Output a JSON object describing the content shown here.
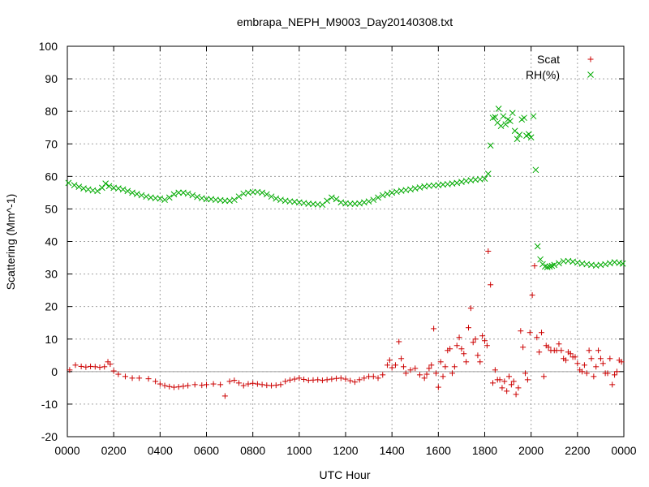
{
  "chart_data": {
    "type": "scatter",
    "title": "embrapa_NEPH_M9003_Day20140308.txt",
    "xlabel": "UTC Hour",
    "ylabel": "Scattering (Mm^-1)",
    "xlim": [
      0,
      24
    ],
    "ylim": [
      -20,
      100
    ],
    "grid": true,
    "legend_position": "top-right",
    "x_tick_labels": [
      "0000",
      "0200",
      "0400",
      "0600",
      "0800",
      "1000",
      "1200",
      "1400",
      "1600",
      "1800",
      "2000",
      "2200",
      "0000"
    ],
    "y_tick_labels": [
      "-20",
      "-10",
      "0",
      "10",
      "20",
      "30",
      "40",
      "50",
      "60",
      "70",
      "80",
      "90",
      "100"
    ],
    "series": [
      {
        "name": "Scat",
        "marker": "plus",
        "color": "#cc0000",
        "points": [
          [
            0.1,
            0.5
          ],
          [
            0.35,
            2.0
          ],
          [
            0.6,
            1.6
          ],
          [
            0.8,
            1.4
          ],
          [
            1.0,
            1.6
          ],
          [
            1.2,
            1.5
          ],
          [
            1.4,
            1.3
          ],
          [
            1.6,
            1.5
          ],
          [
            1.75,
            3.0
          ],
          [
            1.85,
            2.3
          ],
          [
            2.0,
            0.2
          ],
          [
            2.2,
            -0.8
          ],
          [
            2.5,
            -1.5
          ],
          [
            2.8,
            -2.0
          ],
          [
            3.1,
            -2.0
          ],
          [
            3.5,
            -2.2
          ],
          [
            3.8,
            -3.0
          ],
          [
            4.0,
            -3.8
          ],
          [
            4.2,
            -4.3
          ],
          [
            4.4,
            -4.6
          ],
          [
            4.6,
            -4.8
          ],
          [
            4.8,
            -4.7
          ],
          [
            5.0,
            -4.5
          ],
          [
            5.2,
            -4.3
          ],
          [
            5.5,
            -4.0
          ],
          [
            5.8,
            -4.2
          ],
          [
            6.0,
            -4.0
          ],
          [
            6.3,
            -3.8
          ],
          [
            6.6,
            -4.0
          ],
          [
            6.8,
            -7.5
          ],
          [
            7.0,
            -3.0
          ],
          [
            7.2,
            -2.7
          ],
          [
            7.4,
            -3.5
          ],
          [
            7.6,
            -4.3
          ],
          [
            7.8,
            -3.8
          ],
          [
            8.0,
            -3.6
          ],
          [
            8.2,
            -3.8
          ],
          [
            8.4,
            -4.0
          ],
          [
            8.6,
            -4.2
          ],
          [
            8.8,
            -4.3
          ],
          [
            9.0,
            -4.2
          ],
          [
            9.2,
            -4.0
          ],
          [
            9.4,
            -3.0
          ],
          [
            9.6,
            -2.6
          ],
          [
            9.8,
            -2.3
          ],
          [
            10.0,
            -2.0
          ],
          [
            10.2,
            -2.4
          ],
          [
            10.4,
            -2.7
          ],
          [
            10.6,
            -2.6
          ],
          [
            10.8,
            -2.5
          ],
          [
            11.0,
            -2.7
          ],
          [
            11.2,
            -2.5
          ],
          [
            11.4,
            -2.3
          ],
          [
            11.6,
            -2.1
          ],
          [
            11.8,
            -2.0
          ],
          [
            12.0,
            -2.3
          ],
          [
            12.2,
            -2.8
          ],
          [
            12.4,
            -3.2
          ],
          [
            12.6,
            -2.5
          ],
          [
            12.8,
            -2.0
          ],
          [
            13.0,
            -1.5
          ],
          [
            13.2,
            -1.5
          ],
          [
            13.4,
            -2.0
          ],
          [
            13.6,
            -1.0
          ],
          [
            13.8,
            2.0
          ],
          [
            13.9,
            3.5
          ],
          [
            14.0,
            1.2
          ],
          [
            14.15,
            2.0
          ],
          [
            14.3,
            9.2
          ],
          [
            14.4,
            4.0
          ],
          [
            14.5,
            1.5
          ],
          [
            14.6,
            -0.5
          ],
          [
            14.8,
            0.5
          ],
          [
            15.0,
            1.0
          ],
          [
            15.2,
            -1.0
          ],
          [
            15.4,
            -2.0
          ],
          [
            15.5,
            -0.8
          ],
          [
            15.6,
            1.0
          ],
          [
            15.7,
            2.0
          ],
          [
            15.8,
            13.2
          ],
          [
            15.9,
            -0.5
          ],
          [
            16.0,
            -4.8
          ],
          [
            16.1,
            3.0
          ],
          [
            16.2,
            -1.5
          ],
          [
            16.3,
            1.5
          ],
          [
            16.4,
            6.5
          ],
          [
            16.5,
            7.0
          ],
          [
            16.6,
            -0.5
          ],
          [
            16.7,
            1.5
          ],
          [
            16.8,
            8.0
          ],
          [
            16.9,
            10.5
          ],
          [
            17.0,
            7.0
          ],
          [
            17.1,
            5.5
          ],
          [
            17.2,
            3.0
          ],
          [
            17.3,
            13.5
          ],
          [
            17.4,
            19.5
          ],
          [
            17.5,
            9.0
          ],
          [
            17.6,
            10.0
          ],
          [
            17.7,
            5.0
          ],
          [
            17.8,
            3.0
          ],
          [
            17.9,
            11.0
          ],
          [
            18.0,
            9.5
          ],
          [
            18.1,
            8.0
          ],
          [
            18.15,
            37.0
          ],
          [
            18.25,
            26.7
          ],
          [
            18.35,
            -3.5
          ],
          [
            18.45,
            0.5
          ],
          [
            18.55,
            -2.5
          ],
          [
            18.65,
            -2.5
          ],
          [
            18.75,
            -5.0
          ],
          [
            18.85,
            -3.0
          ],
          [
            18.95,
            -6.0
          ],
          [
            19.05,
            -1.5
          ],
          [
            19.15,
            -4.0
          ],
          [
            19.25,
            -3.0
          ],
          [
            19.35,
            -7.0
          ],
          [
            19.45,
            -5.0
          ],
          [
            19.55,
            12.5
          ],
          [
            19.65,
            7.5
          ],
          [
            19.75,
            -0.5
          ],
          [
            19.85,
            -2.5
          ],
          [
            19.95,
            12.0
          ],
          [
            20.05,
            23.5
          ],
          [
            20.15,
            32.5
          ],
          [
            20.25,
            10.5
          ],
          [
            20.35,
            6.0
          ],
          [
            20.45,
            12.0
          ],
          [
            20.55,
            -1.5
          ],
          [
            20.65,
            8.0
          ],
          [
            20.75,
            7.5
          ],
          [
            20.85,
            6.5
          ],
          [
            21.0,
            6.5
          ],
          [
            21.1,
            6.5
          ],
          [
            21.2,
            8.5
          ],
          [
            21.3,
            6.5
          ],
          [
            21.4,
            4.0
          ],
          [
            21.5,
            3.5
          ],
          [
            21.6,
            6.0
          ],
          [
            21.7,
            5.5
          ],
          [
            21.8,
            4.5
          ],
          [
            21.9,
            4.5
          ],
          [
            22.0,
            2.5
          ],
          [
            22.1,
            0.5
          ],
          [
            22.2,
            0.0
          ],
          [
            22.3,
            2.0
          ],
          [
            22.4,
            -0.5
          ],
          [
            22.5,
            6.5
          ],
          [
            22.6,
            4.0
          ],
          [
            22.7,
            -1.5
          ],
          [
            22.8,
            1.5
          ],
          [
            22.9,
            6.5
          ],
          [
            23.0,
            4.0
          ],
          [
            23.1,
            2.5
          ],
          [
            23.2,
            -0.5
          ],
          [
            23.3,
            -0.5
          ],
          [
            23.4,
            4.0
          ],
          [
            23.5,
            -4.0
          ],
          [
            23.6,
            -1.0
          ],
          [
            23.7,
            0.0
          ],
          [
            23.8,
            3.5
          ],
          [
            23.9,
            3.0
          ]
        ]
      },
      {
        "name": "RH(%)",
        "marker": "cross",
        "color": "#00aa00",
        "points": [
          [
            0.05,
            58.0
          ],
          [
            0.3,
            57.3
          ],
          [
            0.5,
            56.8
          ],
          [
            0.7,
            56.3
          ],
          [
            0.9,
            56.0
          ],
          [
            1.1,
            55.7
          ],
          [
            1.3,
            55.5
          ],
          [
            1.5,
            56.5
          ],
          [
            1.65,
            57.8
          ],
          [
            1.8,
            57.0
          ],
          [
            2.0,
            56.5
          ],
          [
            2.2,
            56.3
          ],
          [
            2.4,
            56.0
          ],
          [
            2.6,
            55.5
          ],
          [
            2.8,
            55.0
          ],
          [
            3.0,
            54.6
          ],
          [
            3.2,
            54.2
          ],
          [
            3.4,
            53.8
          ],
          [
            3.6,
            53.5
          ],
          [
            3.8,
            53.3
          ],
          [
            4.0,
            53.2
          ],
          [
            4.2,
            52.8
          ],
          [
            4.4,
            53.5
          ],
          [
            4.6,
            54.5
          ],
          [
            4.8,
            55.0
          ],
          [
            5.0,
            55.0
          ],
          [
            5.2,
            54.7
          ],
          [
            5.4,
            54.2
          ],
          [
            5.6,
            53.7
          ],
          [
            5.8,
            53.3
          ],
          [
            6.0,
            53.0
          ],
          [
            6.2,
            53.0
          ],
          [
            6.4,
            52.8
          ],
          [
            6.6,
            52.7
          ],
          [
            6.8,
            52.5
          ],
          [
            7.0,
            52.5
          ],
          [
            7.2,
            52.8
          ],
          [
            7.4,
            53.8
          ],
          [
            7.6,
            54.7
          ],
          [
            7.8,
            55.0
          ],
          [
            8.0,
            55.2
          ],
          [
            8.2,
            55.2
          ],
          [
            8.4,
            55.0
          ],
          [
            8.6,
            54.5
          ],
          [
            8.8,
            53.8
          ],
          [
            9.0,
            53.2
          ],
          [
            9.2,
            52.8
          ],
          [
            9.4,
            52.5
          ],
          [
            9.6,
            52.3
          ],
          [
            9.8,
            52.2
          ],
          [
            10.0,
            52.0
          ],
          [
            10.2,
            51.8
          ],
          [
            10.4,
            51.6
          ],
          [
            10.6,
            51.5
          ],
          [
            10.8,
            51.4
          ],
          [
            11.0,
            51.3
          ],
          [
            11.2,
            52.5
          ],
          [
            11.4,
            53.5
          ],
          [
            11.6,
            53.0
          ],
          [
            11.8,
            52.0
          ],
          [
            12.0,
            51.7
          ],
          [
            12.2,
            51.6
          ],
          [
            12.4,
            51.6
          ],
          [
            12.6,
            51.7
          ],
          [
            12.8,
            52.0
          ],
          [
            13.0,
            52.3
          ],
          [
            13.2,
            52.8
          ],
          [
            13.4,
            53.5
          ],
          [
            13.6,
            54.2
          ],
          [
            13.8,
            54.6
          ],
          [
            14.0,
            55.0
          ],
          [
            14.2,
            55.3
          ],
          [
            14.4,
            55.6
          ],
          [
            14.6,
            55.8
          ],
          [
            14.8,
            56.0
          ],
          [
            15.0,
            56.3
          ],
          [
            15.2,
            56.6
          ],
          [
            15.4,
            56.9
          ],
          [
            15.6,
            57.1
          ],
          [
            15.8,
            57.2
          ],
          [
            16.0,
            57.3
          ],
          [
            16.2,
            57.5
          ],
          [
            16.4,
            57.6
          ],
          [
            16.6,
            57.8
          ],
          [
            16.8,
            58.0
          ],
          [
            17.0,
            58.3
          ],
          [
            17.2,
            58.6
          ],
          [
            17.4,
            58.8
          ],
          [
            17.6,
            59.0
          ],
          [
            17.8,
            59.1
          ],
          [
            18.0,
            59.3
          ],
          [
            18.15,
            60.8
          ],
          [
            18.25,
            69.5
          ],
          [
            18.35,
            78.0
          ],
          [
            18.45,
            78.2
          ],
          [
            18.55,
            76.5
          ],
          [
            18.6,
            80.8
          ],
          [
            18.7,
            75.5
          ],
          [
            18.8,
            78.5
          ],
          [
            18.9,
            76.0
          ],
          [
            19.0,
            77.5
          ],
          [
            19.1,
            77.0
          ],
          [
            19.2,
            79.5
          ],
          [
            19.3,
            74.0
          ],
          [
            19.4,
            71.5
          ],
          [
            19.5,
            72.8
          ],
          [
            19.6,
            77.5
          ],
          [
            19.7,
            78.0
          ],
          [
            19.8,
            72.5
          ],
          [
            19.9,
            73.0
          ],
          [
            20.0,
            72.0
          ],
          [
            20.1,
            78.5
          ],
          [
            20.2,
            62.0
          ],
          [
            20.28,
            38.5
          ],
          [
            20.4,
            34.5
          ],
          [
            20.5,
            33.0
          ],
          [
            20.6,
            32.3
          ],
          [
            20.7,
            32.1
          ],
          [
            20.8,
            32.3
          ],
          [
            20.9,
            32.5
          ],
          [
            21.0,
            32.8
          ],
          [
            21.2,
            33.3
          ],
          [
            21.4,
            33.9
          ],
          [
            21.6,
            34.0
          ],
          [
            21.8,
            33.8
          ],
          [
            22.0,
            33.5
          ],
          [
            22.2,
            33.2
          ],
          [
            22.4,
            33.0
          ],
          [
            22.6,
            32.8
          ],
          [
            22.8,
            32.6
          ],
          [
            23.0,
            32.8
          ],
          [
            23.2,
            33.0
          ],
          [
            23.4,
            33.3
          ],
          [
            23.6,
            33.6
          ],
          [
            23.8,
            33.4
          ],
          [
            23.95,
            33.2
          ]
        ]
      }
    ]
  }
}
